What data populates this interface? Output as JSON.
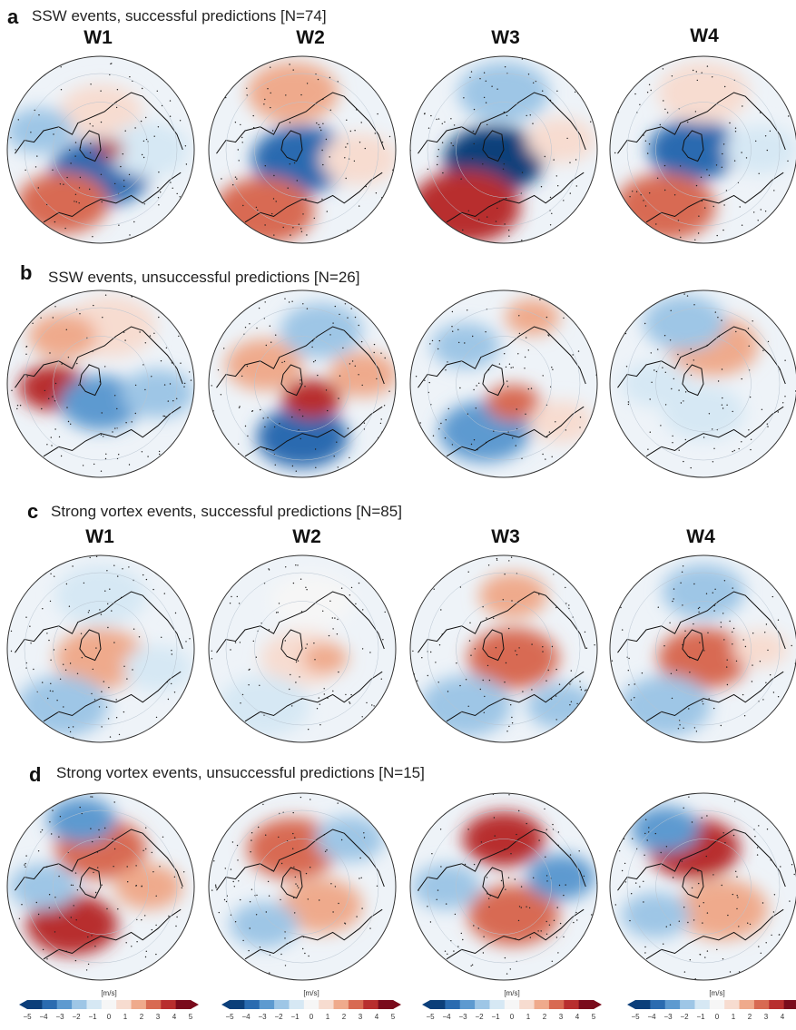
{
  "panels": [
    {
      "letter": "a",
      "title": "SSW events, successful predictions [N=74]"
    },
    {
      "letter": "b",
      "title": "SSW events, unsuccessful predictions [N=26]"
    },
    {
      "letter": "c",
      "title": "Strong vortex events, successful predictions [N=85]"
    },
    {
      "letter": "d",
      "title": "Strong vortex events, unsuccessful predictions [N=15]"
    }
  ],
  "weeks": [
    "W1",
    "W2",
    "W3",
    "W4"
  ],
  "colorbar": {
    "unit": "[m/s]",
    "ticks": [
      "-5",
      "-4",
      "-3",
      "-2",
      "-1",
      "0",
      "1",
      "2",
      "3",
      "4",
      "5"
    ],
    "colors": [
      "#0c3f7a",
      "#2a6bb0",
      "#5d9ad0",
      "#9ec6e6",
      "#d6e8f4",
      "#f6f6f6",
      "#f7dcd0",
      "#efaa8c",
      "#d86a52",
      "#b82e2e",
      "#7a0b1c"
    ]
  },
  "maps": [
    [
      {
        "blobs": [
          [
            0.5,
            0.62,
            0.22,
            "#2a6bb0"
          ],
          [
            0.3,
            0.78,
            0.2,
            "#d86a52"
          ],
          [
            0.5,
            0.3,
            0.18,
            "#f7dcd0"
          ],
          [
            0.18,
            0.4,
            0.15,
            "#9ec6e6"
          ],
          [
            0.75,
            0.5,
            0.18,
            "#d6e8f4"
          ],
          [
            0.55,
            0.5,
            0.06,
            "#b82e2e"
          ]
        ]
      },
      {
        "blobs": [
          [
            0.5,
            0.55,
            0.22,
            "#2a6bb0"
          ],
          [
            0.3,
            0.82,
            0.22,
            "#d86a52"
          ],
          [
            0.45,
            0.2,
            0.2,
            "#efaa8c"
          ],
          [
            0.8,
            0.55,
            0.17,
            "#f7dcd0"
          ]
        ]
      },
      {
        "blobs": [
          [
            0.45,
            0.55,
            0.22,
            "#0c3f7a"
          ],
          [
            0.3,
            0.8,
            0.24,
            "#b82e2e"
          ],
          [
            0.5,
            0.2,
            0.2,
            "#9ec6e6"
          ],
          [
            0.8,
            0.45,
            0.15,
            "#f7dcd0"
          ]
        ]
      },
      {
        "blobs": [
          [
            0.45,
            0.5,
            0.2,
            "#2a6bb0"
          ],
          [
            0.3,
            0.8,
            0.22,
            "#d86a52"
          ],
          [
            0.5,
            0.2,
            0.2,
            "#f7dcd0"
          ],
          [
            0.8,
            0.5,
            0.16,
            "#d6e8f4"
          ]
        ]
      }
    ],
    [
      {
        "blobs": [
          [
            0.25,
            0.52,
            0.15,
            "#b82e2e"
          ],
          [
            0.5,
            0.6,
            0.18,
            "#5d9ad0"
          ],
          [
            0.55,
            0.2,
            0.2,
            "#f7dcd0"
          ],
          [
            0.8,
            0.55,
            0.16,
            "#9ec6e6"
          ],
          [
            0.3,
            0.25,
            0.15,
            "#efaa8c"
          ]
        ]
      },
      {
        "blobs": [
          [
            0.5,
            0.78,
            0.2,
            "#2a6bb0"
          ],
          [
            0.55,
            0.58,
            0.13,
            "#b82e2e"
          ],
          [
            0.3,
            0.4,
            0.17,
            "#efaa8c"
          ],
          [
            0.6,
            0.22,
            0.18,
            "#9ec6e6"
          ],
          [
            0.82,
            0.45,
            0.15,
            "#efaa8c"
          ]
        ]
      },
      {
        "blobs": [
          [
            0.4,
            0.75,
            0.2,
            "#5d9ad0"
          ],
          [
            0.55,
            0.6,
            0.12,
            "#d86a52"
          ],
          [
            0.3,
            0.3,
            0.15,
            "#9ec6e6"
          ],
          [
            0.65,
            0.15,
            0.12,
            "#efaa8c"
          ],
          [
            0.8,
            0.7,
            0.14,
            "#f7dcd0"
          ]
        ]
      },
      {
        "blobs": [
          [
            0.55,
            0.3,
            0.2,
            "#efaa8c"
          ],
          [
            0.4,
            0.18,
            0.18,
            "#9ec6e6"
          ],
          [
            0.5,
            0.65,
            0.18,
            "#d6e8f4"
          ],
          [
            0.25,
            0.5,
            0.15,
            "#d6e8f4"
          ]
        ]
      }
    ],
    [
      {
        "blobs": [
          [
            0.5,
            0.55,
            0.2,
            "#efaa8c"
          ],
          [
            0.3,
            0.8,
            0.2,
            "#9ec6e6"
          ],
          [
            0.5,
            0.22,
            0.2,
            "#d6e8f4"
          ],
          [
            0.8,
            0.6,
            0.15,
            "#d6e8f4"
          ]
        ]
      },
      {
        "blobs": [
          [
            0.5,
            0.55,
            0.18,
            "#f7dcd0"
          ],
          [
            0.3,
            0.8,
            0.2,
            "#d6e8f4"
          ],
          [
            0.55,
            0.25,
            0.18,
            "#f6f6f6"
          ],
          [
            0.62,
            0.55,
            0.1,
            "#efaa8c"
          ]
        ]
      },
      {
        "blobs": [
          [
            0.55,
            0.55,
            0.2,
            "#d86a52"
          ],
          [
            0.55,
            0.22,
            0.15,
            "#efaa8c"
          ],
          [
            0.3,
            0.8,
            0.2,
            "#9ec6e6"
          ],
          [
            0.8,
            0.8,
            0.15,
            "#9ec6e6"
          ]
        ]
      },
      {
        "blobs": [
          [
            0.5,
            0.55,
            0.2,
            "#d86a52"
          ],
          [
            0.5,
            0.2,
            0.18,
            "#9ec6e6"
          ],
          [
            0.3,
            0.8,
            0.2,
            "#9ec6e6"
          ],
          [
            0.8,
            0.5,
            0.12,
            "#f7dcd0"
          ]
        ]
      }
    ],
    [
      {
        "blobs": [
          [
            0.35,
            0.7,
            0.2,
            "#b82e2e"
          ],
          [
            0.5,
            0.3,
            0.2,
            "#d86a52"
          ],
          [
            0.2,
            0.5,
            0.15,
            "#9ec6e6"
          ],
          [
            0.75,
            0.5,
            0.15,
            "#efaa8c"
          ],
          [
            0.4,
            0.15,
            0.15,
            "#5d9ad0"
          ]
        ]
      },
      {
        "blobs": [
          [
            0.45,
            0.3,
            0.2,
            "#d86a52"
          ],
          [
            0.6,
            0.6,
            0.18,
            "#efaa8c"
          ],
          [
            0.3,
            0.7,
            0.15,
            "#9ec6e6"
          ],
          [
            0.75,
            0.25,
            0.15,
            "#9ec6e6"
          ]
        ]
      },
      {
        "blobs": [
          [
            0.5,
            0.25,
            0.18,
            "#b82e2e"
          ],
          [
            0.55,
            0.65,
            0.2,
            "#d86a52"
          ],
          [
            0.2,
            0.5,
            0.15,
            "#9ec6e6"
          ],
          [
            0.8,
            0.45,
            0.15,
            "#5d9ad0"
          ]
        ]
      },
      {
        "blobs": [
          [
            0.45,
            0.3,
            0.2,
            "#b82e2e"
          ],
          [
            0.6,
            0.62,
            0.2,
            "#efaa8c"
          ],
          [
            0.3,
            0.2,
            0.15,
            "#5d9ad0"
          ],
          [
            0.25,
            0.65,
            0.15,
            "#9ec6e6"
          ]
        ]
      }
    ]
  ]
}
